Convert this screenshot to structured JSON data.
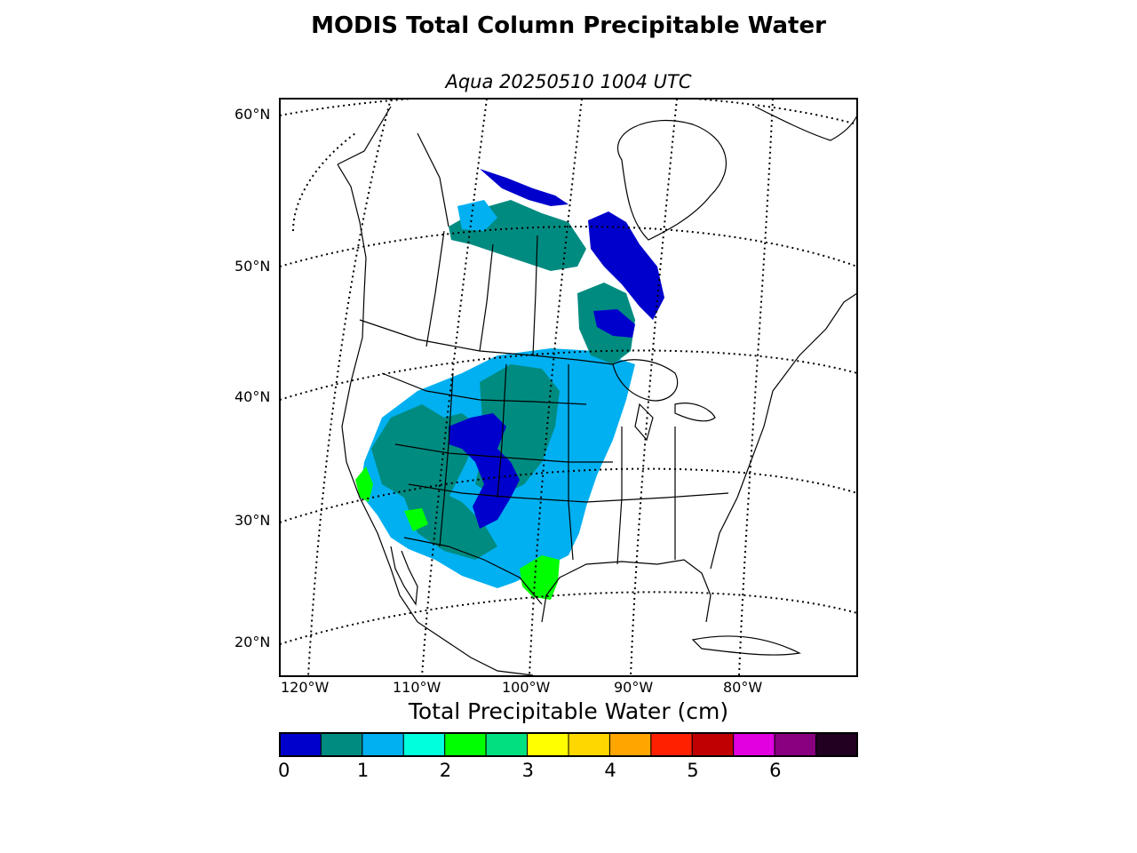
{
  "title": "MODIS Total Column Precipitable Water",
  "subtitle": "Aqua 20250510 1004 UTC",
  "latitude_labels": [
    "60°N",
    "50°N",
    "40°N",
    "30°N",
    "20°N"
  ],
  "longitude_labels": [
    "120°W",
    "110°W",
    "100°W",
    "90°W",
    "80°W"
  ],
  "colorbar": {
    "title": "Total Precipitable Water (cm)",
    "range_cm": [
      0,
      7
    ],
    "bin_width_cm": 0.5,
    "tick_labels": [
      "0",
      "1",
      "2",
      "3",
      "4",
      "5",
      "6"
    ],
    "colors": [
      "#0000cc",
      "#008b80",
      "#00b0f0",
      "#00ffdd",
      "#00ff00",
      "#00e080",
      "#ffff00",
      "#ffd700",
      "#ffa500",
      "#ff2000",
      "#c00000",
      "#e000e0",
      "#880080",
      "#220022"
    ]
  },
  "legend_colors_note_only": ""
}
